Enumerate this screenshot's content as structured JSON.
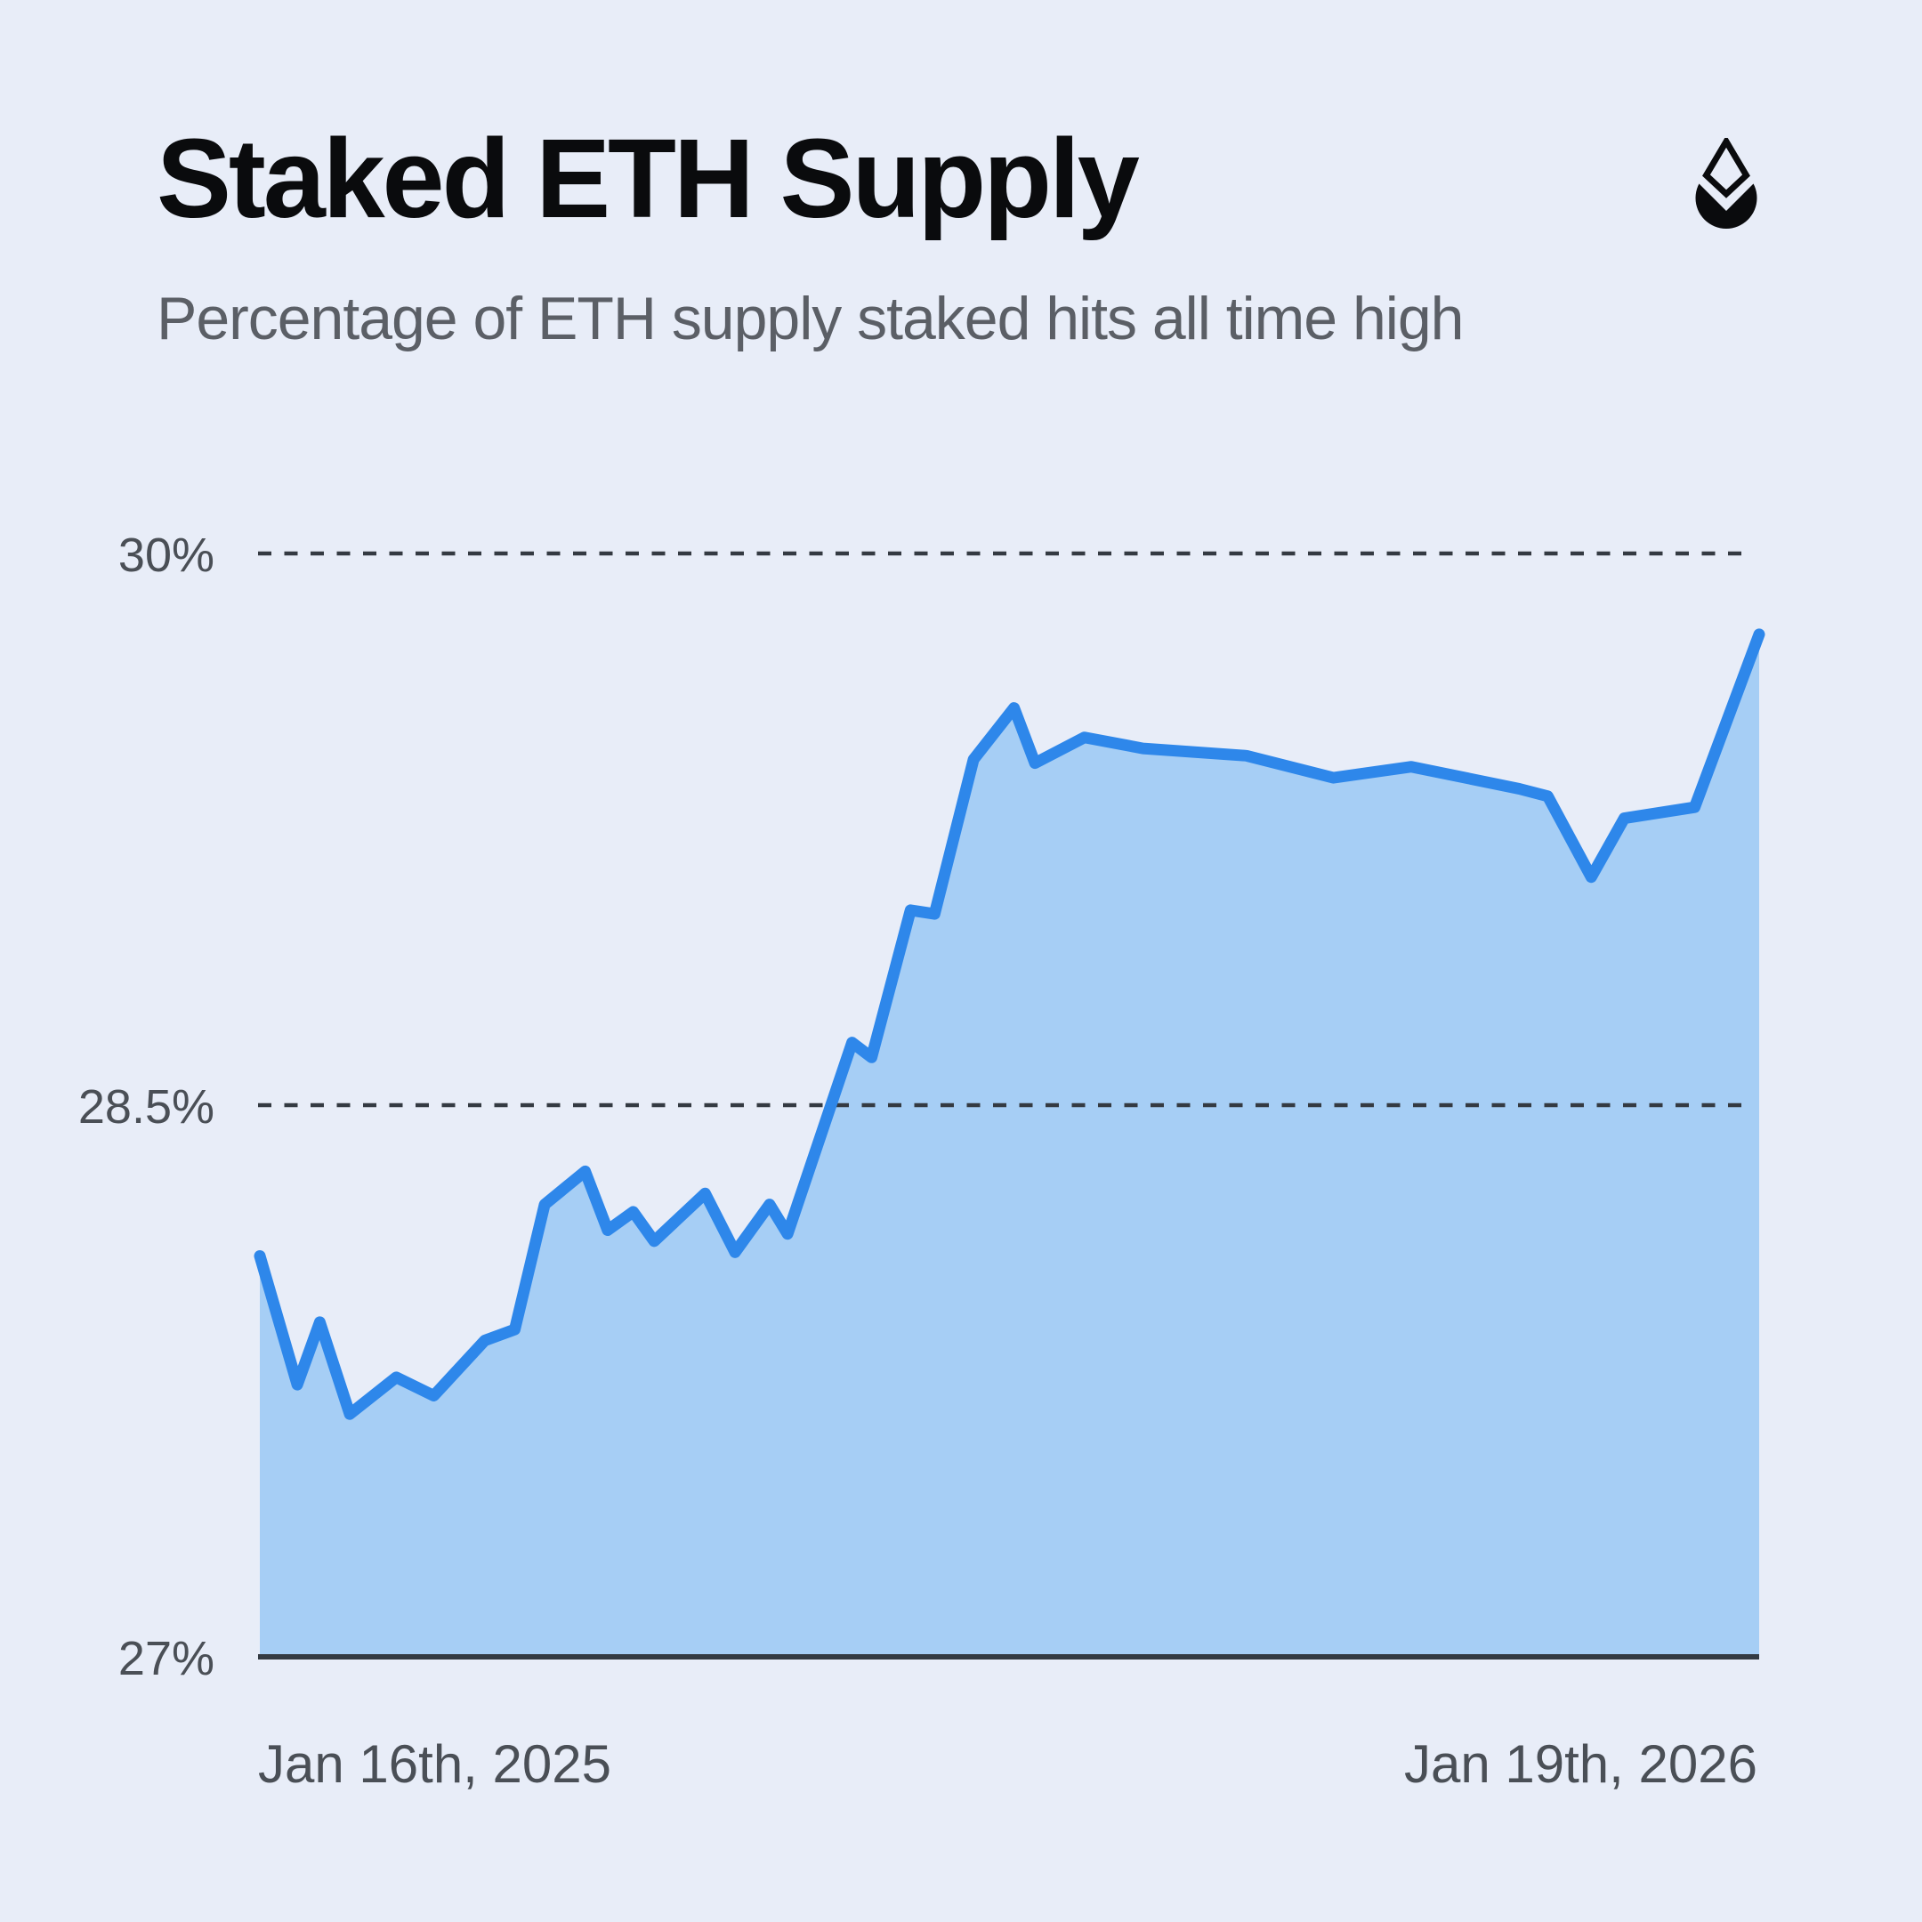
{
  "page": {
    "background": "#E8EDF8"
  },
  "header": {
    "title": "Staked ETH Supply",
    "subtitle": "Percentage of ETH supply staked hits all time high",
    "logo": "eth-droplet-logo"
  },
  "chart_data": {
    "type": "area",
    "title": "Staked ETH Supply",
    "subtitle": "Percentage of ETH supply staked hits all time high",
    "legend_position": "none",
    "grid": "dashed horizontal gridlines at 30% and 28.5%, solid axis at 27%",
    "x_axis": {
      "start_label": "Jan 16th, 2025",
      "end_label": "Jan 19th, 2026"
    },
    "y_axis": {
      "range": [
        27,
        30
      ],
      "unit": "%",
      "ticks": [
        {
          "label": "30%",
          "value": 30
        },
        {
          "label": "28.5%",
          "value": 28.5
        },
        {
          "label": "27%",
          "value": 27
        }
      ]
    },
    "series": [
      {
        "name": "Percentage of ETH supply staked",
        "x_fraction": [
          0,
          0.025,
          0.04,
          0.06,
          0.091,
          0.116,
          0.15,
          0.17,
          0.19,
          0.217,
          0.232,
          0.249,
          0.263,
          0.297,
          0.317,
          0.34,
          0.352,
          0.395,
          0.408,
          0.434,
          0.45,
          0.476,
          0.503,
          0.517,
          0.55,
          0.589,
          0.658,
          0.716,
          0.768,
          0.84,
          0.859,
          0.888,
          0.91,
          0.957,
          1.0
        ],
        "values": [
          28.09,
          27.74,
          27.91,
          27.66,
          27.76,
          27.71,
          27.86,
          27.89,
          28.23,
          28.32,
          28.16,
          28.21,
          28.13,
          28.26,
          28.1,
          28.23,
          28.15,
          28.67,
          28.63,
          29.03,
          29.02,
          29.44,
          29.58,
          29.43,
          29.5,
          29.47,
          29.45,
          29.39,
          29.42,
          29.36,
          29.34,
          29.12,
          29.28,
          29.31,
          29.78
        ]
      }
    ],
    "annotations": {
      "all_time_high_pct": 29.78,
      "start_pct": 28.09
    },
    "colors": {
      "background": "#E8EDF8",
      "area_fill": "#A6CEF5",
      "line": "#2E87EA",
      "gridline": "#343A42",
      "axis": "#333A42",
      "tick_label": "#4A4F56",
      "title": "#0A0B0D",
      "subtitle": "#5B5F66",
      "logo": "#0A0B0D"
    }
  }
}
